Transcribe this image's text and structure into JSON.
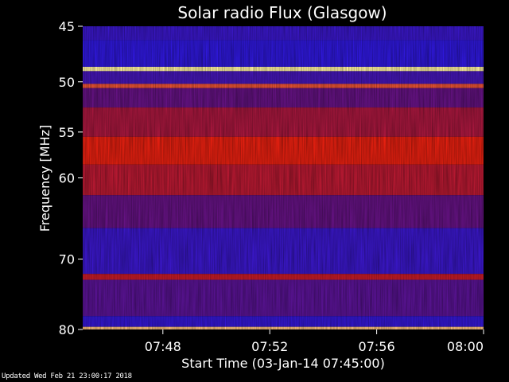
{
  "chart_data": {
    "type": "heatmap",
    "title": "Solar radio Flux (Glasgow)",
    "xlabel": "Start Time (03-Jan-14 07:45:00)",
    "ylabel": "Frequency [MHz]",
    "x_range": [
      "07:45:00",
      "08:00:00"
    ],
    "x_ticks": [
      "07:48",
      "07:52",
      "07:56",
      "08:00"
    ],
    "y_range": [
      45,
      80
    ],
    "y_ticks": [
      45,
      50,
      55,
      60,
      70,
      80
    ],
    "y_scale": "log",
    "colors": {
      "background": "#000000",
      "low": "#1a1aff",
      "mid": "#7a1060",
      "high": "#e82010",
      "peak": "#fff2a0"
    },
    "bands": [
      {
        "from": 45.0,
        "to": 46.2,
        "level": 0.15
      },
      {
        "from": 46.2,
        "to": 48.6,
        "level": 0.1
      },
      {
        "from": 48.6,
        "to": 49.0,
        "level": 1.0
      },
      {
        "from": 49.0,
        "to": 50.2,
        "level": 0.2
      },
      {
        "from": 50.2,
        "to": 50.6,
        "level": 0.85
      },
      {
        "from": 50.6,
        "to": 52.5,
        "level": 0.35
      },
      {
        "from": 52.5,
        "to": 55.5,
        "level": 0.6
      },
      {
        "from": 55.5,
        "to": 58.5,
        "level": 0.8
      },
      {
        "from": 58.5,
        "to": 62.0,
        "level": 0.65
      },
      {
        "from": 62.0,
        "to": 66.0,
        "level": 0.35
      },
      {
        "from": 66.0,
        "to": 72.0,
        "level": 0.15
      },
      {
        "from": 72.0,
        "to": 72.8,
        "level": 0.7
      },
      {
        "from": 72.8,
        "to": 78.0,
        "level": 0.3
      },
      {
        "from": 78.0,
        "to": 79.6,
        "level": 0.12
      },
      {
        "from": 79.6,
        "to": 80.0,
        "level": 0.95
      }
    ]
  },
  "footer": "Updated Wed Feb 21 23:00:17 2018"
}
